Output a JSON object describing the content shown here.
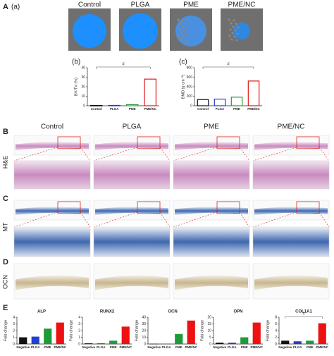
{
  "panel_a": {
    "label": "A",
    "sublabel": "(a)",
    "groups": [
      "Control",
      "PLGA",
      "PME",
      "PME/NC"
    ]
  },
  "panel_b": {
    "label": "B",
    "stain": "H&E",
    "groups": [
      "Control",
      "PLGA",
      "PME",
      "PME/NC"
    ]
  },
  "panel_c": {
    "label": "C",
    "stain": "MT"
  },
  "panel_d": {
    "label": "D",
    "stain": "OCN"
  },
  "panel_e": {
    "label": "E"
  },
  "chart_data": [
    {
      "type": "bar",
      "label": "(b)",
      "y_label": "BV/TV (%)",
      "style": "outline",
      "annotation": "#",
      "categories": [
        "Control",
        "PLGA",
        "PME",
        "PME/NC"
      ],
      "values": [
        0.3,
        0.4,
        1.2,
        28
      ],
      "colors": [
        "#111111",
        "#1f3fd0",
        "#2a9a3a",
        "#e01818"
      ],
      "ylim": [
        0,
        40
      ],
      "yticks": [
        0,
        10,
        20,
        30,
        40
      ]
    },
    {
      "type": "bar",
      "label": "(c)",
      "y_label": "BMD (g·cm⁻³)",
      "style": "outline",
      "annotation": "#",
      "categories": [
        "Control",
        "PLGA",
        "PME",
        "PME/NC"
      ],
      "values": [
        130,
        140,
        180,
        520
      ],
      "colors": [
        "#111111",
        "#1f3fd0",
        "#2a9a3a",
        "#e01818"
      ],
      "ylim": [
        0,
        800
      ],
      "yticks": [
        0,
        200,
        400,
        600,
        800
      ]
    },
    {
      "type": "bar",
      "title": "ALP",
      "y_label": "Fold change",
      "style": "filled",
      "categories": [
        "Negative",
        "PLGA",
        "PME",
        "PME/NC"
      ],
      "values": [
        1,
        1.1,
        2.3,
        3.2
      ],
      "colors": [
        "#111111",
        "#1f3fd0",
        "#1f9a3a",
        "#ee1111"
      ],
      "ylim": [
        0,
        4
      ],
      "yticks": [
        0,
        1,
        2,
        3,
        4
      ]
    },
    {
      "type": "bar",
      "title": "RUNX2",
      "y_label": "Fold change",
      "style": "filled",
      "categories": [
        "Negative",
        "PLGA",
        "PME",
        "PME/NC"
      ],
      "values": [
        0.1,
        0.1,
        0.5,
        2.6
      ],
      "colors": [
        "#111111",
        "#1f3fd0",
        "#1f9a3a",
        "#ee1111"
      ],
      "ylim": [
        0,
        4
      ],
      "yticks": [
        0,
        1,
        2,
        3,
        4
      ]
    },
    {
      "type": "bar",
      "title": "OCN",
      "y_label": "Fold change",
      "style": "filled",
      "categories": [
        "Negative",
        "PLGA",
        "PME",
        "PME/NC"
      ],
      "values": [
        0.3,
        0.5,
        15,
        35
      ],
      "colors": [
        "#111111",
        "#1f3fd0",
        "#1f9a3a",
        "#ee1111"
      ],
      "ylim": [
        0,
        40
      ],
      "yticks": [
        0,
        10,
        20,
        30,
        40
      ]
    },
    {
      "type": "bar",
      "title": "OPN",
      "y_label": "Fold change",
      "style": "filled",
      "categories": [
        "Negative",
        "PLGA",
        "PME",
        "PME/NC"
      ],
      "values": [
        1,
        1,
        5,
        16
      ],
      "colors": [
        "#111111",
        "#1f3fd0",
        "#1f9a3a",
        "#ee1111"
      ],
      "ylim": [
        0,
        20
      ],
      "yticks": [
        0,
        5,
        10,
        15,
        20
      ]
    },
    {
      "type": "bar",
      "title": "COL1A1",
      "y_label": "Fold change",
      "style": "filled",
      "annotation": "#",
      "categories": [
        "Negative",
        "PLGA",
        "PME",
        "PME/NC"
      ],
      "values": [
        1,
        0.8,
        1,
        6.2
      ],
      "colors": [
        "#111111",
        "#1f3fd0",
        "#1f9a3a",
        "#ee1111"
      ],
      "ylim": [
        0,
        8
      ],
      "yticks": [
        0,
        2,
        4,
        6,
        8
      ]
    }
  ]
}
